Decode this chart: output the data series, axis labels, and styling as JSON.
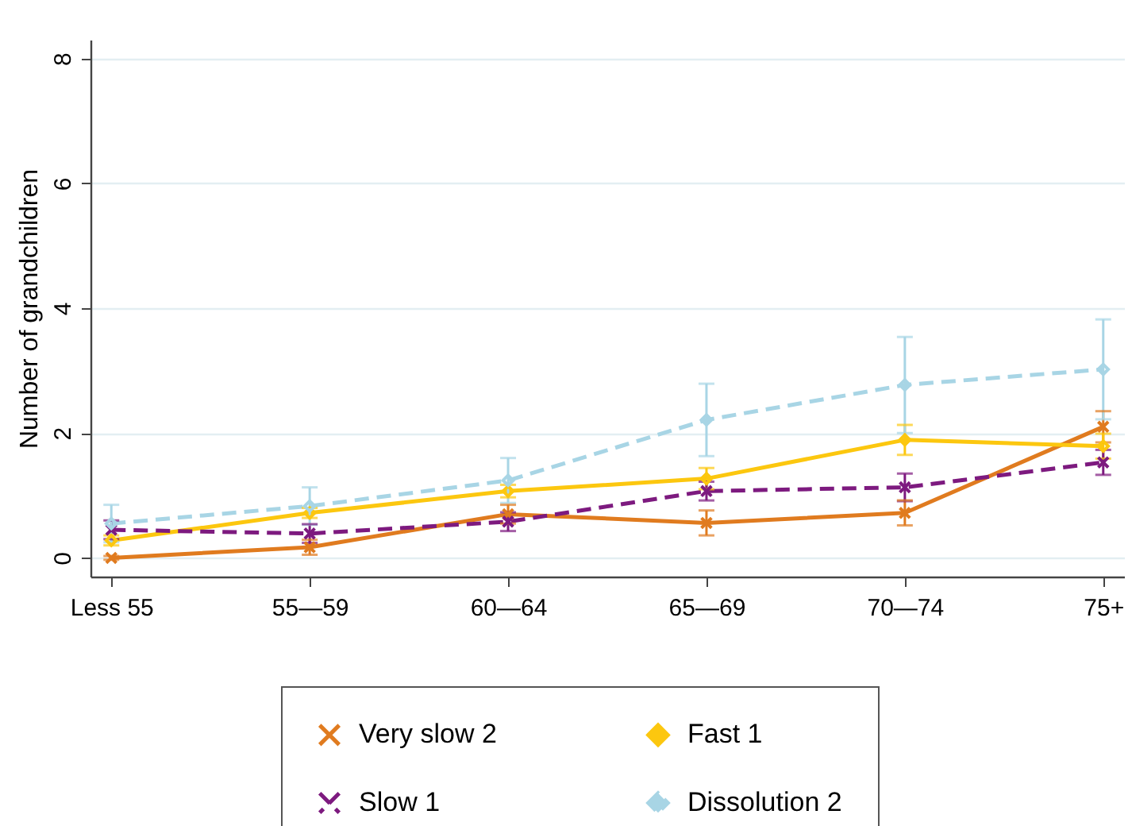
{
  "chart_data": {
    "type": "line",
    "categories": [
      "Less 55",
      "55—59",
      "60—64",
      "65—69",
      "70—74",
      "75+"
    ],
    "ylabel": "Number of grandchildren",
    "ylim": [
      -0.3,
      8.3
    ],
    "yticks": [
      0,
      2,
      4,
      6,
      8
    ],
    "grid": "y",
    "legend": "bottom",
    "series": [
      {
        "name": "Very slow 2",
        "color": "#e07b1f",
        "marker": "cross",
        "line_style": "solid",
        "values": [
          0.0,
          0.17,
          0.7,
          0.56,
          0.72,
          2.1
        ],
        "errors": [
          0.03,
          0.12,
          0.15,
          0.2,
          0.2,
          0.25
        ]
      },
      {
        "name": "Fast 1",
        "color": "#fcc70f",
        "marker": "diamond",
        "line_style": "solid",
        "values": [
          0.28,
          0.72,
          1.07,
          1.27,
          1.89,
          1.79
        ],
        "errors": [
          0.08,
          0.08,
          0.1,
          0.17,
          0.24,
          0.2
        ]
      },
      {
        "name": "Slow 1",
        "color": "#7d1a7f",
        "marker": "cross",
        "line_style": "dashed",
        "values": [
          0.45,
          0.39,
          0.58,
          1.07,
          1.13,
          1.53
        ],
        "errors": [
          0.15,
          0.15,
          0.15,
          0.15,
          0.22,
          0.2
        ]
      },
      {
        "name": "Dissolution 2",
        "color": "#a8d5e5",
        "marker": "diamond",
        "line_style": "dashed",
        "values": [
          0.55,
          0.83,
          1.24,
          2.21,
          2.77,
          3.02
        ],
        "errors": [
          0.3,
          0.3,
          0.36,
          0.58,
          0.77,
          0.8
        ]
      }
    ]
  }
}
